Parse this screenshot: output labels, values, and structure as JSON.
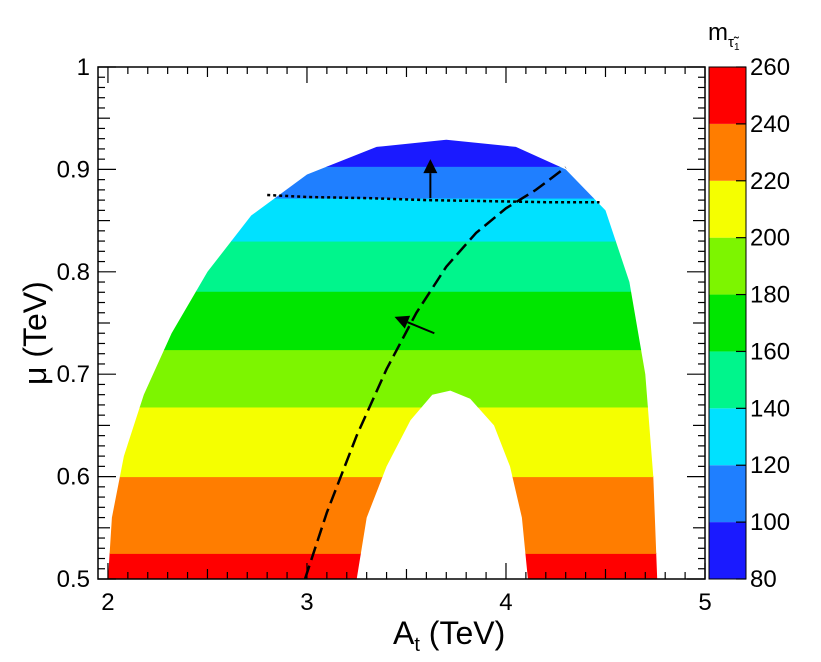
{
  "chart_data": {
    "type": "heatmap",
    "xlabel": "A",
    "xlabel_sub": "t",
    "xlabel_unit": "(TeV)",
    "ylabel": "μ",
    "ylabel_unit": "(TeV)",
    "xlim": [
      1.95,
      5.0
    ],
    "ylim": [
      0.5,
      1.0
    ],
    "x_ticks": [
      {
        "value": 2,
        "label": "2"
      },
      {
        "value": 3,
        "label": "3"
      },
      {
        "value": 4,
        "label": "4"
      },
      {
        "value": 5,
        "label": "5"
      }
    ],
    "y_ticks": [
      {
        "value": 0.5,
        "label": "0.5"
      },
      {
        "value": 0.6,
        "label": "0.6"
      },
      {
        "value": 0.7,
        "label": "0.7"
      },
      {
        "value": 0.8,
        "label": "0.8"
      },
      {
        "value": 0.9,
        "label": "0.9"
      },
      {
        "value": 1.0,
        "label": "1"
      }
    ],
    "colorbar": {
      "title": "m",
      "title_sub": "τ̃",
      "title_sub2": "1",
      "zlim": [
        80,
        260
      ],
      "tick_labels": [
        "80",
        "100",
        "120",
        "140",
        "160",
        "180",
        "200",
        "220",
        "240",
        "260"
      ],
      "bands": [
        {
          "from": 80,
          "to": 100,
          "color": "#1a1aff"
        },
        {
          "from": 100,
          "to": 120,
          "color": "#1f7fff"
        },
        {
          "from": 120,
          "to": 140,
          "color": "#00e1ff"
        },
        {
          "from": 140,
          "to": 160,
          "color": "#00f58c"
        },
        {
          "from": 160,
          "to": 180,
          "color": "#00e600"
        },
        {
          "from": 180,
          "to": 200,
          "color": "#7df500"
        },
        {
          "from": 200,
          "to": 220,
          "color": "#f5ff00"
        },
        {
          "from": 220,
          "to": 240,
          "color": "#ff7d00"
        },
        {
          "from": 240,
          "to": 260,
          "color": "#ff0000"
        }
      ]
    },
    "allowed_region": {
      "outer_boundary": [
        [
          2.0,
          0.5
        ],
        [
          2.02,
          0.56
        ],
        [
          2.08,
          0.62
        ],
        [
          2.18,
          0.68
        ],
        [
          2.32,
          0.74
        ],
        [
          2.5,
          0.8
        ],
        [
          2.72,
          0.855
        ],
        [
          3.0,
          0.895
        ],
        [
          3.35,
          0.922
        ],
        [
          3.7,
          0.929
        ],
        [
          4.05,
          0.922
        ],
        [
          4.3,
          0.9
        ],
        [
          4.5,
          0.86
        ],
        [
          4.62,
          0.79
        ],
        [
          4.7,
          0.7
        ],
        [
          4.74,
          0.6
        ],
        [
          4.76,
          0.5
        ]
      ],
      "inner_hole": [
        [
          3.25,
          0.5
        ],
        [
          3.3,
          0.56
        ],
        [
          3.4,
          0.61
        ],
        [
          3.52,
          0.655
        ],
        [
          3.63,
          0.68
        ],
        [
          3.72,
          0.684
        ],
        [
          3.82,
          0.676
        ],
        [
          3.94,
          0.65
        ],
        [
          4.02,
          0.61
        ],
        [
          4.08,
          0.56
        ],
        [
          4.11,
          0.5
        ]
      ],
      "band_edges_mu": [
        {
          "band_index": 8,
          "mu_from": 0.5,
          "mu_to": 0.525
        },
        {
          "band_index": 7,
          "mu_from": 0.525,
          "mu_to": 0.6
        },
        {
          "band_index": 6,
          "mu_from": 0.6,
          "mu_to": 0.668
        },
        {
          "band_index": 5,
          "mu_from": 0.668,
          "mu_to": 0.724
        },
        {
          "band_index": 4,
          "mu_from": 0.724,
          "mu_to": 0.781
        },
        {
          "band_index": 3,
          "mu_from": 0.781,
          "mu_to": 0.83
        },
        {
          "band_index": 2,
          "mu_from": 0.83,
          "mu_to": 0.872
        },
        {
          "band_index": 1,
          "mu_from": 0.872,
          "mu_to": 0.903
        },
        {
          "band_index": 0,
          "mu_from": 0.903,
          "mu_to": 0.93
        }
      ]
    },
    "dotted_line": [
      [
        2.8,
        0.875
      ],
      [
        3.0,
        0.873
      ],
      [
        3.3,
        0.872
      ],
      [
        3.6,
        0.87
      ],
      [
        3.9,
        0.869
      ],
      [
        4.2,
        0.868
      ],
      [
        4.47,
        0.868
      ]
    ],
    "dotted_arrow": {
      "from": [
        3.62,
        0.872
      ],
      "to": [
        3.62,
        0.91
      ]
    },
    "dashed_line": [
      [
        2.99,
        0.5
      ],
      [
        3.1,
        0.565
      ],
      [
        3.25,
        0.64
      ],
      [
        3.4,
        0.705
      ],
      [
        3.55,
        0.76
      ],
      [
        3.7,
        0.805
      ],
      [
        3.85,
        0.838
      ],
      [
        4.0,
        0.862
      ],
      [
        4.15,
        0.88
      ],
      [
        4.3,
        0.902
      ]
    ],
    "dashed_arrow": {
      "from": [
        3.64,
        0.74
      ],
      "to": [
        3.44,
        0.756
      ]
    }
  }
}
